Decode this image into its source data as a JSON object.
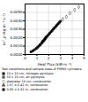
{
  "chart_data": {
    "type": "scatter",
    "xlabel": "Heat Flux (kW·m⁻²)",
    "ylabel": "m''_p (kg·m⁻²·s⁻¹)",
    "xlim": [
      0,
      5
    ],
    "ylim": [
      0,
      0.006
    ],
    "xticks": [
      0,
      1,
      2,
      3,
      4,
      5
    ],
    "yticks": [
      {
        "value": 0,
        "label": "0.0000"
      },
      {
        "value": 0.001,
        "label": "0.0010"
      },
      {
        "value": 0.002,
        "label": "0.0020"
      },
      {
        "value": 0.003,
        "label": "0.0030"
      },
      {
        "value": 0.004,
        "label": "0.0040"
      },
      {
        "value": 0.005,
        "label": "0.0050"
      }
    ],
    "grid": true,
    "legend_title": "Test conditions and sample sizes of PMMA cylinders:",
    "series": [
      {
        "name": "10 x 10 cm, nitrogen pyrolysis",
        "marker": "square",
        "color": "black",
        "x": [
          0.5,
          0.65,
          0.8,
          0.95,
          1.05,
          1.15,
          1.25,
          1.3,
          1.4,
          1.45,
          1.5,
          1.55,
          1.6,
          1.65,
          1.7,
          1.75,
          1.8,
          1.9,
          2.0,
          2.1,
          2.2,
          2.3,
          2.4,
          2.5,
          2.6,
          2.7,
          2.8,
          2.9,
          3.0
        ],
        "values": [
          0.00032,
          0.00044,
          0.00058,
          0.00072,
          0.00085,
          0.00098,
          0.00112,
          0.0012,
          0.00135,
          0.00145,
          0.00155,
          0.00162,
          0.0017,
          0.00178,
          0.00188,
          0.00198,
          0.00208,
          0.00222,
          0.00238,
          0.00255,
          0.0027,
          0.00285,
          0.00302,
          0.00318,
          0.00332,
          0.0035,
          0.00365,
          0.0038,
          0.00395
        ]
      },
      {
        "name": "10 x 10 cm, air pyrolysis",
        "marker": "square",
        "color": "dimgray",
        "x": [],
        "values": []
      },
      {
        "name": "diameter 10 cm, combustion",
        "marker": "diamond",
        "color": "white",
        "x": [
          3.2,
          3.5,
          3.8,
          4.2,
          4.55
        ],
        "values": [
          0.0042,
          0.00448,
          0.0049,
          0.0053,
          0.00565
        ]
      },
      {
        "name": "1.57 x 0.41 m, combustion",
        "marker": "triangle",
        "color": "dimgray",
        "x": [],
        "values": []
      },
      {
        "name": "0.60 x 0.91 m, combustion",
        "marker": "square",
        "color": "black",
        "x": [],
        "values": []
      }
    ]
  }
}
